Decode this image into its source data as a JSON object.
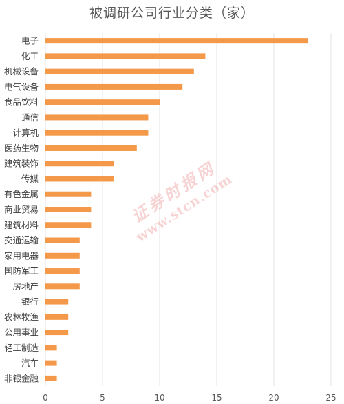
{
  "chart_data": {
    "type": "bar",
    "orientation": "horizontal",
    "title": "被调研公司行业分类（家）",
    "categories": [
      "电子",
      "化工",
      "机械设备",
      "电气设备",
      "食品饮料",
      "通信",
      "计算机",
      "医药生物",
      "建筑装饰",
      "传媒",
      "有色金属",
      "商业贸易",
      "建筑材料",
      "交通运输",
      "家用电器",
      "国防军工",
      "房地产",
      "银行",
      "农林牧渔",
      "公用事业",
      "轻工制造",
      "汽车",
      "非银金融"
    ],
    "values": [
      23,
      14,
      13,
      12,
      10,
      9,
      9,
      8,
      6,
      6,
      4,
      4,
      4,
      3,
      3,
      3,
      3,
      2,
      2,
      2,
      1,
      1,
      1
    ],
    "xlim": [
      0,
      25
    ],
    "xticks": [
      0,
      5,
      10,
      15,
      20,
      25
    ],
    "grid": true,
    "bar_color": "#F4984A",
    "grid_color": "#E3E3E3"
  },
  "watermark": {
    "text": "证券时报网",
    "url": "www.stcn.com"
  }
}
